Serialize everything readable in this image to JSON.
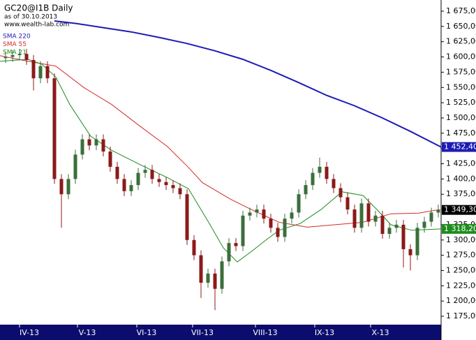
{
  "chart_data": {
    "type": "candlestick",
    "title": "GC20@I1B Daily",
    "subtitle": "as of 30.10.2013",
    "source": "www.wealth-lab.com",
    "open": [
      1598,
      1600,
      1603,
      1605,
      1595,
      1565,
      1585,
      1565,
      1400,
      1375,
      1400,
      1440,
      1465,
      1455,
      1465,
      1445,
      1420,
      1400,
      1380,
      1390,
      1410,
      1415,
      1400,
      1395,
      1390,
      1385,
      1375,
      1300,
      1275,
      1230,
      1245,
      1220,
      1265,
      1295,
      1290,
      1340,
      1345,
      1350,
      1335,
      1320,
      1305,
      1335,
      1345,
      1375,
      1390,
      1410,
      1420,
      1400,
      1385,
      1370,
      1350,
      1320,
      1360,
      1330,
      1340,
      1310,
      1320,
      1325,
      1285,
      1275,
      1320,
      1330,
      1345
    ],
    "high": [
      1608,
      1611,
      1613,
      1613,
      1603,
      1593,
      1593,
      1573,
      1408,
      1408,
      1448,
      1473,
      1473,
      1473,
      1473,
      1453,
      1428,
      1408,
      1398,
      1418,
      1423,
      1423,
      1408,
      1403,
      1398,
      1393,
      1383,
      1308,
      1283,
      1253,
      1253,
      1273,
      1303,
      1303,
      1348,
      1353,
      1358,
      1358,
      1343,
      1328,
      1343,
      1353,
      1383,
      1398,
      1418,
      1435,
      1428,
      1408,
      1393,
      1378,
      1358,
      1368,
      1368,
      1348,
      1348,
      1328,
      1333,
      1333,
      1293,
      1328,
      1338,
      1353,
      1358
    ],
    "low": [
      1590,
      1592,
      1595,
      1587,
      1545,
      1557,
      1557,
      1392,
      1320,
      1367,
      1392,
      1432,
      1447,
      1447,
      1437,
      1412,
      1392,
      1372,
      1372,
      1382,
      1402,
      1392,
      1387,
      1382,
      1377,
      1367,
      1292,
      1267,
      1205,
      1222,
      1185,
      1212,
      1257,
      1282,
      1282,
      1332,
      1337,
      1327,
      1312,
      1297,
      1297,
      1327,
      1337,
      1367,
      1382,
      1402,
      1392,
      1377,
      1362,
      1342,
      1312,
      1312,
      1322,
      1322,
      1302,
      1302,
      1312,
      1255,
      1250,
      1267,
      1312,
      1322,
      1337
    ],
    "close": [
      1600,
      1603,
      1605,
      1595,
      1565,
      1585,
      1565,
      1400,
      1375,
      1400,
      1440,
      1465,
      1455,
      1465,
      1445,
      1420,
      1400,
      1380,
      1390,
      1410,
      1415,
      1400,
      1395,
      1390,
      1385,
      1375,
      1300,
      1275,
      1230,
      1245,
      1220,
      1265,
      1295,
      1290,
      1340,
      1345,
      1350,
      1335,
      1320,
      1305,
      1335,
      1345,
      1375,
      1390,
      1410,
      1420,
      1400,
      1385,
      1370,
      1350,
      1320,
      1360,
      1330,
      1340,
      1310,
      1320,
      1325,
      1285,
      1275,
      1320,
      1330,
      1345,
      1349.3
    ],
    "up_color": "#3b6e3b",
    "down_color": "#8b1a1a",
    "series": [
      {
        "name": "SMA 220",
        "color": "#1c1cb4",
        "x": [
          7,
          10,
          14,
          18,
          22,
          26,
          30,
          34,
          38,
          42,
          46,
          50,
          54,
          58,
          62.4
        ],
        "values": [
          1659,
          1655,
          1648,
          1641,
          1632,
          1622,
          1610,
          1596,
          1578,
          1558,
          1537,
          1520,
          1500,
          1478,
          1452.4
        ]
      },
      {
        "name": "SMA 55",
        "color": "#d42a2a",
        "x": [
          -0.8,
          3.2,
          7.2,
          11.2,
          15.2,
          19.2,
          23.2,
          26.2,
          28.2,
          32.2,
          35.2,
          39.2,
          43.2,
          47.2,
          51.2,
          55.2,
          59.2,
          62.2
        ],
        "values": [
          1602,
          1593,
          1585,
          1550,
          1522,
          1487,
          1453,
          1419,
          1394,
          1367,
          1350,
          1329,
          1321,
          1325,
          1329,
          1343,
          1344,
          1350
        ]
      },
      {
        "name": "SMA 21",
        "color": "#1e8c1e",
        "x": [
          -0.8,
          3.2,
          5.2,
          7.2,
          9.2,
          12.2,
          15.2,
          19.2,
          23.2,
          26.2,
          29.2,
          31.2,
          33.2,
          35.2,
          37.2,
          39.2,
          42.2,
          45.2,
          48.2,
          51.2,
          53.2,
          55.2,
          58.2,
          62.4
        ],
        "values": [
          1593,
          1596,
          1588,
          1567,
          1522,
          1470,
          1447,
          1424,
          1402,
          1384,
          1327,
          1287,
          1264,
          1281,
          1299,
          1316,
          1327,
          1350,
          1379,
          1373,
          1350,
          1325,
          1316,
          1318.2
        ]
      }
    ],
    "price_labels": [
      {
        "value": 1452.4,
        "label": "1 452,40",
        "color": "#1c1cb4"
      },
      {
        "value": 1349.3,
        "label": "1 349,30",
        "color": "#000000"
      },
      {
        "value": 1318.2,
        "label": "1 318,20",
        "color": "#1e8c1e"
      }
    ],
    "xlim": [
      -0.8,
      62.4
    ],
    "xticks": [
      {
        "value": 3.4,
        "label": "IV-13"
      },
      {
        "value": 11.7,
        "label": "V-13"
      },
      {
        "value": 20.2,
        "label": "VI-13"
      },
      {
        "value": 28.2,
        "label": "VII-13"
      },
      {
        "value": 37.2,
        "label": "VIII-13"
      },
      {
        "value": 45.7,
        "label": "IX-13"
      },
      {
        "value": 53.7,
        "label": "X-13"
      }
    ],
    "ylim": [
      1161.3,
      1693.3
    ],
    "yticks": [
      {
        "value": 1175,
        "label": "1 175,00"
      },
      {
        "value": 1200,
        "label": "1 200,00"
      },
      {
        "value": 1225,
        "label": "1 225,00"
      },
      {
        "value": 1250,
        "label": "1 250,00"
      },
      {
        "value": 1275,
        "label": "1 275,00"
      },
      {
        "value": 1300,
        "label": "1 300,00"
      },
      {
        "value": 1325,
        "label": "1 325,00"
      },
      {
        "value": 1350,
        "label": "1 350,00"
      },
      {
        "value": 1375,
        "label": "1 375,00"
      },
      {
        "value": 1400,
        "label": "1 400,00"
      },
      {
        "value": 1425,
        "label": "1 425,00"
      },
      {
        "value": 1450,
        "label": "1 450,00"
      },
      {
        "value": 1475,
        "label": "1 475,00"
      },
      {
        "value": 1500,
        "label": "1 500,00"
      },
      {
        "value": 1525,
        "label": "1 525,00"
      },
      {
        "value": 1550,
        "label": "1 550,00"
      },
      {
        "value": 1575,
        "label": "1 575,00"
      },
      {
        "value": 1600,
        "label": "1 600,00"
      },
      {
        "value": 1625,
        "label": "1 625,00"
      },
      {
        "value": 1650,
        "label": "1 650,00"
      },
      {
        "value": 1675,
        "label": "1 675,00"
      }
    ]
  }
}
